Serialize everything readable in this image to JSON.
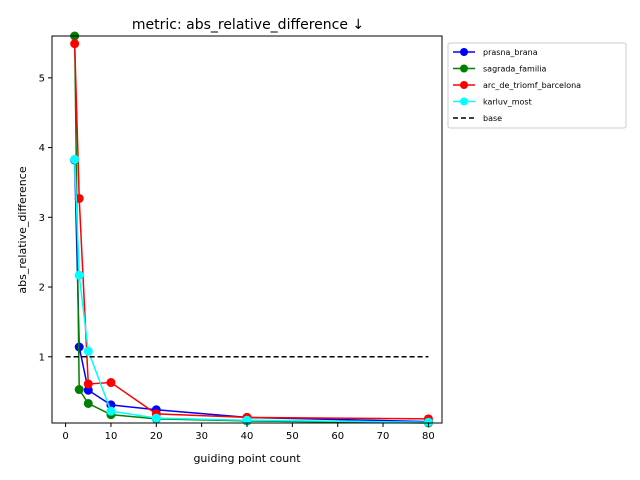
{
  "chart_data": {
    "type": "line",
    "title": "metric: abs_relative_difference ↓",
    "xlabel": "guiding point count",
    "ylabel": "abs_relative_difference",
    "xlim": [
      -3,
      83
    ],
    "ylim": [
      0.05,
      5.6
    ],
    "xticks": [
      0,
      10,
      20,
      30,
      40,
      50,
      60,
      70,
      80
    ],
    "yticks": [
      1,
      2,
      3,
      4,
      5
    ],
    "grid": false,
    "legend_position": "outside-right-top",
    "series": [
      {
        "name": "prasna_brana",
        "color": "#0000ff",
        "x": [
          2,
          3,
          5,
          10,
          20,
          40,
          80
        ],
        "y": [
          3.82,
          1.14,
          0.52,
          0.31,
          0.24,
          0.13,
          0.07
        ]
      },
      {
        "name": "sagrada_familia",
        "color": "#008000",
        "x": [
          2,
          3,
          5,
          10,
          20,
          40,
          80
        ],
        "y": [
          5.6,
          0.53,
          0.33,
          0.17,
          0.11,
          0.08,
          0.05
        ]
      },
      {
        "name": "arc_de_triomf_barcelona",
        "color": "#ff0000",
        "x": [
          2,
          3,
          5,
          10,
          20,
          40,
          80
        ],
        "y": [
          5.49,
          3.27,
          0.61,
          0.63,
          0.18,
          0.13,
          0.11
        ]
      },
      {
        "name": "karluv_most",
        "color": "#00ffff",
        "x": [
          2,
          3,
          5,
          10,
          20,
          40,
          80
        ],
        "y": [
          3.83,
          2.17,
          1.08,
          0.22,
          0.12,
          0.09,
          0.06
        ]
      },
      {
        "name": "base",
        "color": "#000000",
        "dashed": true,
        "x": [
          0,
          80
        ],
        "y": [
          1,
          1
        ]
      }
    ]
  }
}
